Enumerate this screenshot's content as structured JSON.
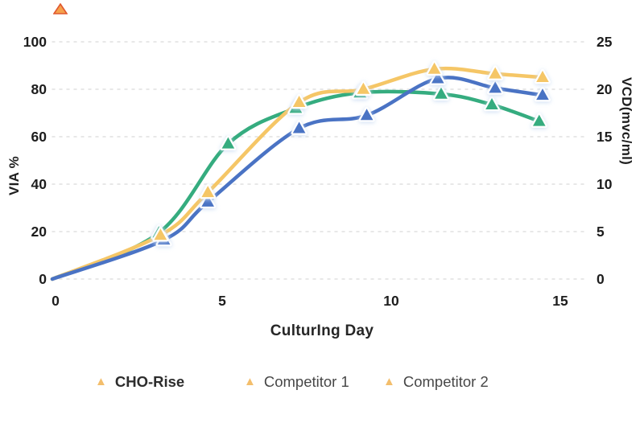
{
  "decor": {
    "corner_triangle_fill": "#F5A14C",
    "corner_triangle_edge": "#E0582E"
  },
  "chart_data": {
    "type": "line",
    "title": "",
    "xlabel": "CulturIng Day",
    "ylabel_left": "VIA %",
    "ylabel_right": "VCD(mvc/ml)",
    "xlim": [
      0,
      16
    ],
    "x_ticks": [
      0,
      5,
      10,
      15
    ],
    "ylim_left": [
      0,
      100
    ],
    "y_ticks_left": [
      0,
      20,
      40,
      60,
      80,
      100
    ],
    "ylim_right": [
      0,
      25
    ],
    "y_ticks_right": [
      0,
      5,
      10,
      15,
      20,
      25
    ],
    "grid": "horizontal-dashed",
    "marker": "triangle",
    "legend_position": "bottom",
    "legend_marker_color": "#F3BE6C",
    "grid_color": "#E1E1E1",
    "tick_color": "#1D1D1D",
    "series": [
      {
        "name": "CHO-Rise",
        "color": "#F5C666",
        "x": [
          0,
          3.2,
          4.6,
          7.3,
          9.2,
          11.3,
          13.1,
          14.5
        ],
        "via_percent": [
          0,
          18.5,
          36.5,
          74.5,
          80,
          88.5,
          86.5,
          85
        ],
        "vcd_mvc_ml": [
          0,
          4.6,
          9.1,
          18.6,
          20,
          22.1,
          21.6,
          21.3
        ]
      },
      {
        "name": "Competitor 1",
        "color": "#4A73C4",
        "x": [
          0,
          3.3,
          4.6,
          7.3,
          9.3,
          11.4,
          13.1,
          14.5
        ],
        "via_percent": [
          0,
          16.5,
          32.5,
          63.5,
          69,
          84.5,
          80.5,
          77.5
        ],
        "vcd_mvc_ml": [
          0,
          4.1,
          8.1,
          15.9,
          17.3,
          21.1,
          20.1,
          19.4
        ]
      },
      {
        "name": "Competitor 2",
        "color": "#35AC7F",
        "x": [
          0,
          3.15,
          5.2,
          7.2,
          9.1,
          11.5,
          13,
          14.4
        ],
        "via_percent": [
          0,
          19.5,
          57,
          72,
          78.5,
          78,
          73.5,
          66.5
        ],
        "vcd_mvc_ml": [
          0,
          4.9,
          14.3,
          18,
          19.6,
          19.5,
          18.4,
          16.6
        ]
      }
    ]
  }
}
